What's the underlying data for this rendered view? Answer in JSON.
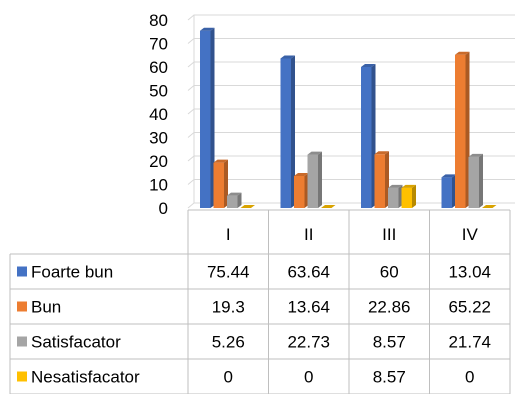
{
  "chart_data": {
    "type": "bar",
    "title": "",
    "xlabel": "",
    "ylabel": "",
    "ylim": [
      0,
      80
    ],
    "yticks": [
      0,
      10,
      20,
      30,
      40,
      50,
      60,
      70,
      80
    ],
    "ytick_labels": [
      "0",
      "10",
      "20",
      "30",
      "40",
      "50",
      "60",
      "70",
      "80"
    ],
    "grid": true,
    "style": "3d-clustered-column-with-data-table",
    "categories": [
      "I",
      "II",
      "III",
      "IV"
    ],
    "series": [
      {
        "name": "Foarte bun",
        "color": "#4472C4",
        "values": [
          75.44,
          63.64,
          60,
          13.04
        ],
        "labels": [
          "75.44",
          "63.64",
          "60",
          "13.04"
        ]
      },
      {
        "name": "Bun",
        "color": "#ED7D31",
        "values": [
          19.3,
          13.64,
          22.86,
          65.22
        ],
        "labels": [
          "19.3",
          "13.64",
          "22.86",
          "65.22"
        ]
      },
      {
        "name": "Satisfacator",
        "color": "#A5A5A5",
        "values": [
          5.26,
          22.73,
          8.57,
          21.74
        ],
        "labels": [
          "5.26",
          "22.73",
          "8.57",
          "21.74"
        ]
      },
      {
        "name": "Nesatisfacator",
        "color": "#FFC000",
        "values": [
          0,
          0,
          8.57,
          0
        ],
        "labels": [
          "0",
          "0",
          "8.57",
          "0"
        ]
      }
    ]
  }
}
